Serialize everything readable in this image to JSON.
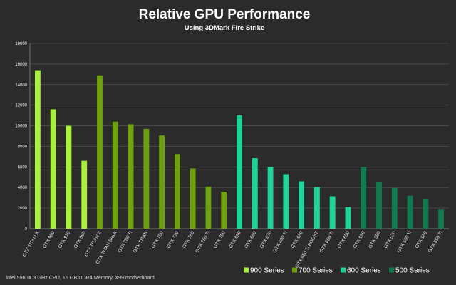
{
  "chart_data": {
    "type": "bar",
    "title": "Relative GPU Performance",
    "subtitle": "Using 3DMark Fire Strike",
    "footnote": "Intel 5960X 3 GHz CPU, 16 GB DDR4 Memory, X99 motherboard.",
    "xlabel": "",
    "ylabel": "",
    "ylim": [
      0,
      18000
    ],
    "yticks": [
      "0",
      "2000",
      "4000",
      "6000",
      "8000",
      "10000",
      "12000",
      "14000",
      "16000",
      "18000"
    ],
    "grid": true,
    "legend_position": "bottom-right",
    "series": [
      {
        "name": "900 Series",
        "color": "#a8f03c",
        "categories": [
          "GTX TITAN X",
          "GTX 980",
          "GTX 970",
          "GTX 960"
        ],
        "values": [
          15400,
          11600,
          10000,
          6600
        ]
      },
      {
        "name": "700 Series",
        "color": "#6ea10e",
        "categories": [
          "GTX TITAN Z",
          "GTX TITAN Black",
          "GTX 780 Ti",
          "GTX TITAN",
          "GTX 780",
          "GTX 770",
          "GTX 760",
          "GTX 750 Ti",
          "GTX 750"
        ],
        "values": [
          14900,
          10400,
          10150,
          9700,
          9050,
          7250,
          5850,
          4100,
          3600
        ]
      },
      {
        "name": "600 Series",
        "color": "#1fd49a",
        "categories": [
          "GTX 690",
          "GTX 680",
          "GTX 670",
          "GTX 660 Ti",
          "GTX 660",
          "GTX 650 Ti BOOST",
          "GTX 650 Ti",
          "GTX 650"
        ],
        "values": [
          11000,
          6850,
          6000,
          5300,
          4600,
          4050,
          3150,
          2100
        ]
      },
      {
        "name": "500 Series",
        "color": "#0e7a4e",
        "categories": [
          "GTX 590",
          "GTX 580",
          "GTX 570",
          "GTX 560 Ti",
          "GTX 560",
          "GTX 550 Ti"
        ],
        "values": [
          6000,
          4500,
          3950,
          3200,
          2850,
          1850
        ]
      }
    ]
  }
}
